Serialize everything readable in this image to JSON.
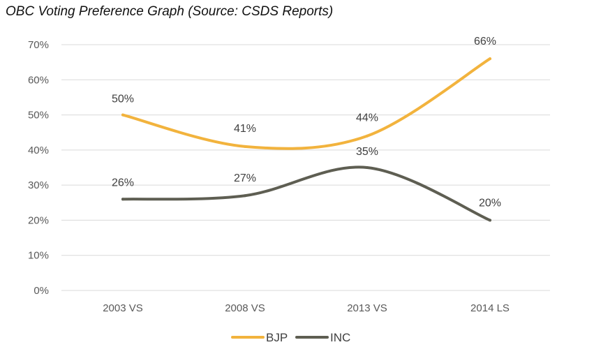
{
  "chart_data": {
    "type": "line",
    "title": "OBC Voting Preference Graph (Source: CSDS Reports)",
    "xlabel": "",
    "ylabel": "",
    "categories": [
      "2003 VS",
      "2008 VS",
      "2013 VS",
      "2014 LS"
    ],
    "ylim": [
      0,
      70
    ],
    "yticks": [
      0,
      10,
      20,
      30,
      40,
      50,
      60,
      70
    ],
    "ytick_labels": [
      "0%",
      "10%",
      "20%",
      "30%",
      "40%",
      "50%",
      "60%",
      "70%"
    ],
    "grid": true,
    "legend_position": "bottom",
    "series": [
      {
        "name": "BJP",
        "color": "#F2B33D",
        "values": [
          50,
          41,
          44,
          66
        ],
        "labels": [
          "50%",
          "41%",
          "44%",
          "66%"
        ]
      },
      {
        "name": "INC",
        "color": "#5E5E52",
        "values": [
          26,
          27,
          35,
          20
        ],
        "labels": [
          "26%",
          "27%",
          "35%",
          "20%"
        ]
      }
    ]
  }
}
